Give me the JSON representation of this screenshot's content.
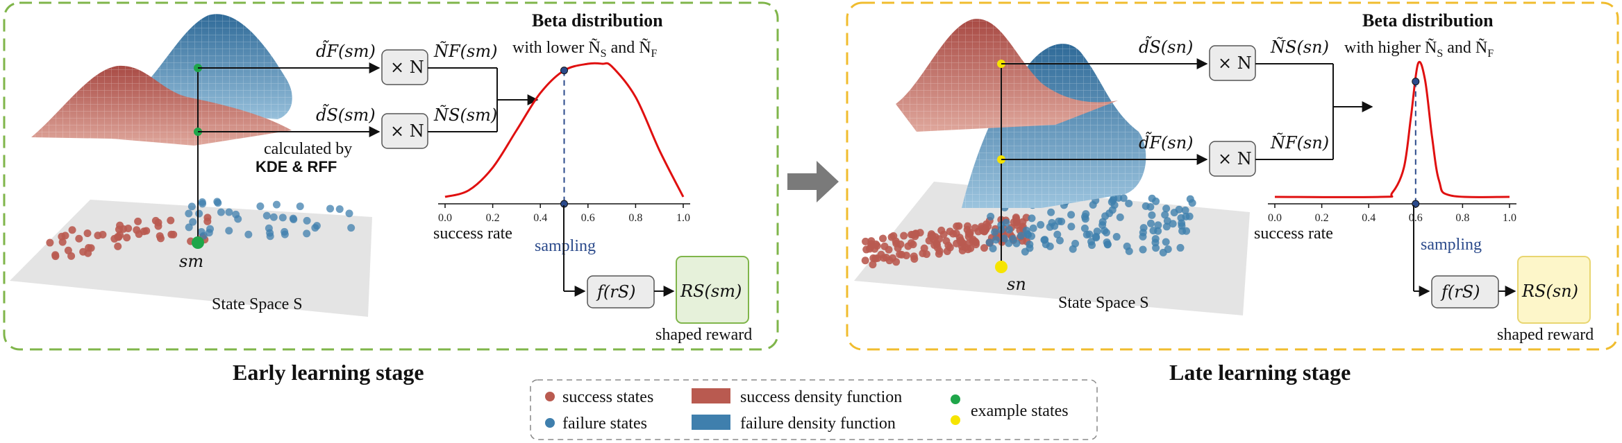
{
  "colors": {
    "early_border": "#7fb54a",
    "late_border": "#f0bc2e",
    "success": "#b95a50",
    "failure": "#3f7fad",
    "example_early": "#1fa64a",
    "example_late": "#f6e400",
    "curve": "#e01010",
    "reward_early_fill": "#e6f1da",
    "reward_early_stroke": "#7fb54a",
    "reward_late_fill": "#fdf6c9",
    "reward_late_stroke": "#e8d570"
  },
  "early": {
    "title": "Early learning stage",
    "beta_title": "Beta distribution",
    "beta_sub": "with lower Ñ",
    "beta_sub_s": "S",
    "beta_sub_and": "and Ñ",
    "beta_sub_f": "F",
    "upper_density": "d̃F(sm)",
    "lower_density": "d̃S(sm)",
    "upper_count": "ÑF(sm)",
    "lower_count": "ÑS(sm)",
    "mult": "× N",
    "calc1": "calculated by",
    "calc2": "KDE & RFF",
    "state_label": "sm",
    "space_label": "State Space S",
    "func": "f(rS)",
    "reward": "RS(sm)",
    "reward_label": "shaped reward",
    "xlabel": "success rate",
    "sampling": "sampling",
    "ticks": [
      "0.0",
      "0.2",
      "0.4",
      "0.6",
      "0.8",
      "1.0"
    ]
  },
  "late": {
    "title": "Late learning stage",
    "beta_title": "Beta distribution",
    "beta_sub": "with higher Ñ",
    "beta_sub_s": "S",
    "beta_sub_and": "and Ñ",
    "beta_sub_f": "F",
    "upper_density": "d̃S(sn)",
    "lower_density": "d̃F(sn)",
    "upper_count": "ÑS(sn)",
    "lower_count": "ÑF(sn)",
    "mult": "× N",
    "state_label": "sn",
    "space_label": "State Space S",
    "func": "f(rS)",
    "reward": "RS(sn)",
    "reward_label": "shaped reward",
    "xlabel": "success rate",
    "sampling": "sampling",
    "ticks": [
      "0.0",
      "0.2",
      "0.4",
      "0.6",
      "0.8",
      "1.0"
    ]
  },
  "legend": {
    "success_states": "success states",
    "failure_states": "failure states",
    "success_density": "success density function",
    "failure_density": "failure density function",
    "example_states": "example states"
  },
  "chart_data": [
    {
      "type": "line",
      "name": "early beta",
      "x": [
        0.0,
        0.1,
        0.2,
        0.3,
        0.4,
        0.5,
        0.6,
        0.66,
        0.7,
        0.8,
        0.9,
        1.0
      ],
      "y": [
        0.0,
        0.05,
        0.22,
        0.5,
        0.78,
        0.95,
        1.0,
        1.0,
        0.98,
        0.75,
        0.35,
        0.0
      ],
      "xlim": [
        0,
        1
      ],
      "sample_x": 0.5,
      "xlabel": "success rate"
    },
    {
      "type": "line",
      "name": "late beta",
      "x": [
        0.0,
        0.45,
        0.5,
        0.55,
        0.58,
        0.61,
        0.64,
        0.67,
        0.7,
        0.75,
        1.0
      ],
      "y": [
        0.0,
        0.0,
        0.03,
        0.22,
        0.6,
        1.0,
        0.88,
        0.45,
        0.12,
        0.01,
        0.0
      ],
      "xlim": [
        0,
        1
      ],
      "sample_x": 0.6,
      "xlabel": "success rate"
    }
  ]
}
